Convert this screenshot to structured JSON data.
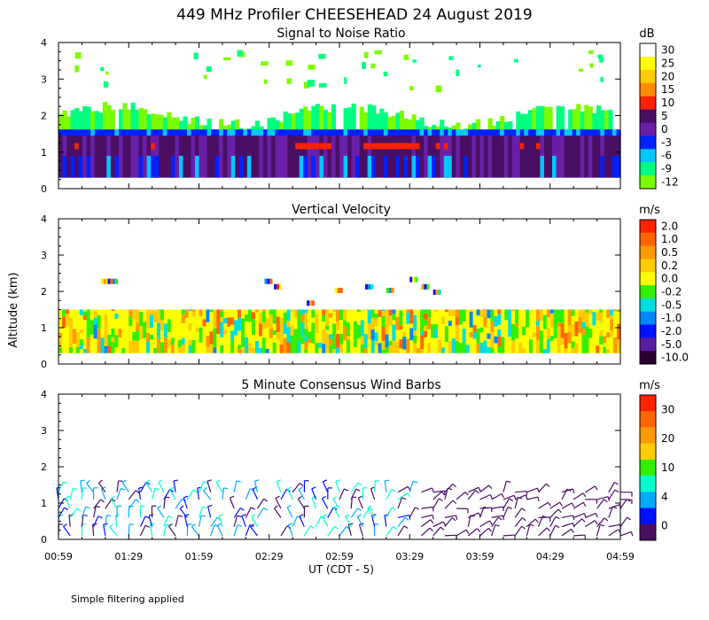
{
  "figure": {
    "title": "449 MHz Profiler CHEESEHEAD 24 August 2019",
    "footer_note": "Simple filtering applied",
    "ylabel": "Altitude (km)",
    "xlabel": "UT  (CDT - 5)"
  },
  "chart_data": [
    {
      "type": "heatmap",
      "title": "Signal to Noise Ratio",
      "variable": "snr",
      "unit": "dB",
      "ylabel": "Altitude (km)",
      "xlabel": "UT  (CDT - 5)",
      "x_ticks": [
        "00:59",
        "01:29",
        "01:59",
        "02:29",
        "02:59",
        "03:29",
        "03:59",
        "04:29",
        "04:59"
      ],
      "x_range_minutes_after_0059": [
        0,
        240
      ],
      "ylim": [
        0,
        4
      ],
      "y_ticks": [
        "0",
        "1",
        "2",
        "3",
        "4"
      ],
      "colorbar_labels": [
        "30",
        "25",
        "20",
        "15",
        "10",
        "5",
        "0",
        "-3",
        "-6",
        "-9",
        "-12"
      ],
      "colorbar_colors": [
        "#ffffff",
        "#ffff00",
        "#ffcc00",
        "#ff8c00",
        "#ff2200",
        "#4a0f63",
        "#6a1fa8",
        "#0022ff",
        "#00c8ff",
        "#00ff80",
        "#7cfc00"
      ],
      "layers_km": [
        {
          "label": "weak echo (-12 to -9 dB)",
          "bottom": 1.65,
          "top": 2.1
        },
        {
          "label": "moderate echo (-3 to 0 dB)",
          "bottom": 1.3,
          "top": 1.6
        },
        {
          "label": "strong echo (0 to 10 dB)",
          "bottom": 0.3,
          "top": 1.45
        },
        {
          "label": "peak returns (10 dB)",
          "bottom": 1.05,
          "top": 1.25
        }
      ],
      "data_bottom_km": 0.3
    },
    {
      "type": "heatmap",
      "title": "Vertical Velocity",
      "variable": "w",
      "unit": "m/s",
      "ylabel": "Altitude (km)",
      "xlabel": "UT  (CDT - 5)",
      "x_ticks": [
        "00:59",
        "01:29",
        "01:59",
        "02:29",
        "02:59",
        "03:29",
        "03:59",
        "04:29",
        "04:59"
      ],
      "ylim": [
        0,
        4
      ],
      "y_ticks": [
        "0",
        "1",
        "2",
        "3",
        "4"
      ],
      "colorbar_labels": [
        "2.0",
        "1.0",
        "0.5",
        "0.2",
        "0.0",
        "-0.2",
        "-0.5",
        "-1.0",
        "-2.0",
        "-5.0",
        "-10.0"
      ],
      "colorbar_colors": [
        "#ff2200",
        "#ff6600",
        "#ff9900",
        "#ffcc00",
        "#ffff00",
        "#33ee00",
        "#00dddd",
        "#0088ff",
        "#0011ff",
        "#5a1fa0",
        "#2a0030"
      ],
      "data_bottom_km": 0.3,
      "data_top_km": 1.5
    },
    {
      "type": "scatter",
      "title": "5 Minute Consensus Wind Barbs",
      "variable": "wind",
      "unit": "m/s",
      "ylabel": "Altitude (km)",
      "xlabel": "UT  (CDT - 5)",
      "x_ticks": [
        "00:59",
        "01:29",
        "01:59",
        "02:29",
        "02:59",
        "03:29",
        "03:59",
        "04:29",
        "04:59"
      ],
      "ylim": [
        0,
        4
      ],
      "y_ticks": [
        "0",
        "1",
        "2",
        "3",
        "4"
      ],
      "colorbar_labels": [
        "30",
        "20",
        "10",
        "4",
        "0"
      ],
      "colorbar_colors": [
        "#ff2200",
        "#ff6600",
        "#ff9900",
        "#ffcc00",
        "#33ee00",
        "#00ffcc",
        "#00aaff",
        "#0011ff",
        "#4a0f63"
      ],
      "barb_altitudes_km": [
        0.1,
        0.35,
        0.6,
        0.85,
        1.1,
        1.3
      ],
      "barb_interval_minutes": 5
    }
  ]
}
